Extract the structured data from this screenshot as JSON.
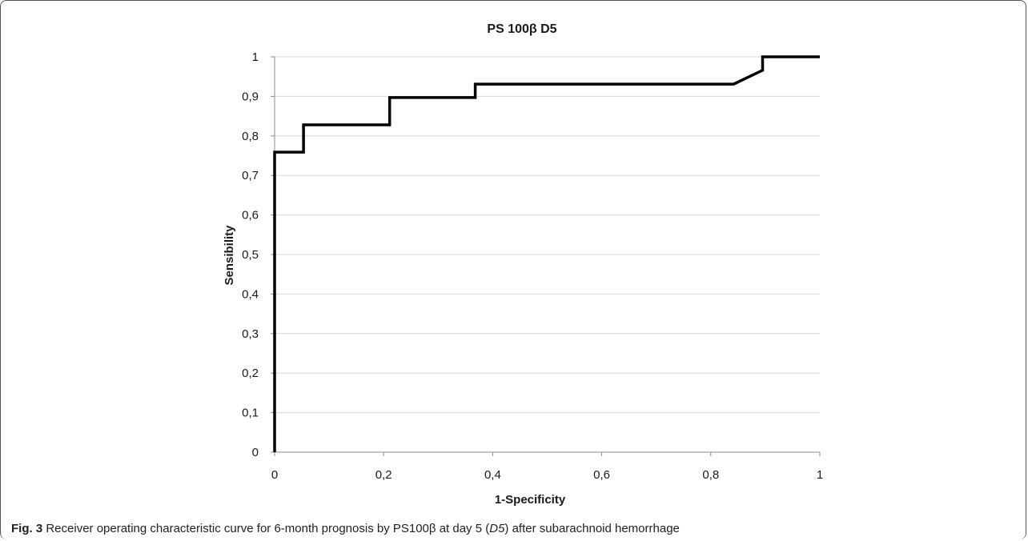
{
  "chart_data": {
    "type": "line",
    "title": "PS 100β D5",
    "xlabel": "1-Specificity",
    "ylabel": "Sensibility",
    "xlim": [
      0,
      1
    ],
    "ylim": [
      0,
      1
    ],
    "x_ticks": [
      "0",
      "0,2",
      "0,4",
      "0,6",
      "0,8",
      "1"
    ],
    "y_ticks": [
      "0",
      "0,1",
      "0,2",
      "0,3",
      "0,4",
      "0,5",
      "0,6",
      "0,7",
      "0,8",
      "0,9",
      "1"
    ],
    "grid": "horizontal",
    "legend": "none",
    "series": [
      {
        "x": [
          0,
          0,
          0.053,
          0.053,
          0.211,
          0.211,
          0.368,
          0.368,
          0.842,
          0.895,
          0.895,
          1
        ],
        "y": [
          0,
          0.759,
          0.759,
          0.828,
          0.828,
          0.897,
          0.897,
          0.931,
          0.931,
          0.966,
          1,
          1
        ],
        "color": "#000000"
      }
    ]
  },
  "caption": {
    "label": "Fig. 3",
    "text_1": " Receiver operating characteristic curve for 6-month prognosis by PS100β at day 5 (",
    "italic": "D5",
    "text_2": ") after subarachnoid hemorrhage"
  },
  "colors": {
    "grid": "#d9d9d9",
    "axis": "#8c8c8c",
    "line": "#000000",
    "border": "#555555"
  }
}
